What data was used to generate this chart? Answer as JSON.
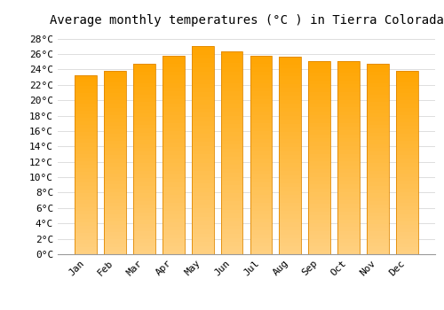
{
  "title": "Average monthly temperatures (°C ) in Tierra Colorada",
  "months": [
    "Jan",
    "Feb",
    "Mar",
    "Apr",
    "May",
    "Jun",
    "Jul",
    "Aug",
    "Sep",
    "Oct",
    "Nov",
    "Dec"
  ],
  "values": [
    23.3,
    23.8,
    24.7,
    25.8,
    27.0,
    26.4,
    25.8,
    25.7,
    25.1,
    25.1,
    24.7,
    23.8
  ],
  "bar_color_top": "#FFA500",
  "bar_color_bottom": "#FFD080",
  "bar_edge_color": "#E08800",
  "background_color": "#ffffff",
  "grid_color": "#dddddd",
  "ylim": [
    0,
    29
  ],
  "ytick_step": 2,
  "title_fontsize": 10,
  "tick_fontsize": 8,
  "font_family": "monospace"
}
